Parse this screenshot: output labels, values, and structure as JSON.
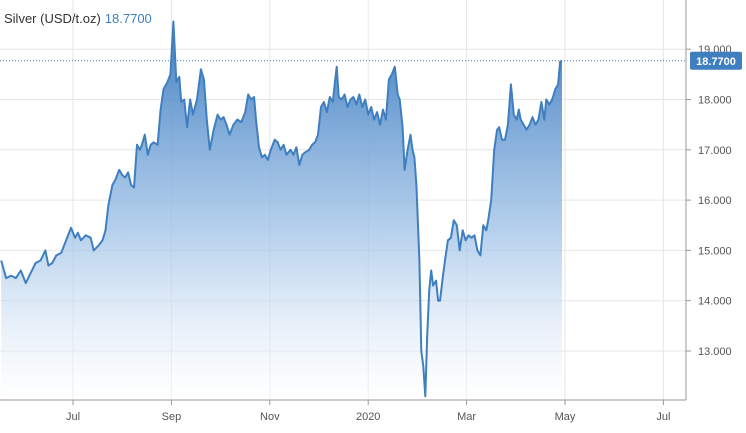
{
  "header": {
    "instrument": "Silver (USD/t.oz)",
    "last_price": "18.7700"
  },
  "colors": {
    "line": "#3f7fc0",
    "fill_top": "#3d7cc0",
    "fill_bottom": "#ffffff",
    "grid": "#e6e6e6",
    "axis": "#999999",
    "badge": "#3f7fc0",
    "title_value": "#3f7fc0"
  },
  "chart_data": {
    "type": "area",
    "title": "Silver (USD/t.oz)",
    "xlabel": "",
    "ylabel": "",
    "ylim": [
      12.0,
      19.9
    ],
    "grid": true,
    "y_axis_position": "right",
    "y_ticks": [
      13.0,
      14.0,
      15.0,
      16.0,
      17.0,
      18.0,
      19.0
    ],
    "y_tick_labels": [
      "13.000",
      "14.000",
      "15.000",
      "16.000",
      "17.000",
      "18.000",
      "19.000"
    ],
    "x_ticks": [
      {
        "label": "Jul",
        "t": 1.0
      },
      {
        "label": "Sep",
        "t": 3.0
      },
      {
        "label": "Nov",
        "t": 5.0
      },
      {
        "label": "2020",
        "t": 7.0
      },
      {
        "label": "Mar",
        "t": 9.0
      },
      {
        "label": "May",
        "t": 11.0
      },
      {
        "label": "Jul",
        "t": 13.0
      }
    ],
    "current_value": 18.77,
    "current_value_label": "18.7700",
    "series": [
      {
        "points": [
          [
            -0.46,
            14.8
          ],
          [
            -0.36,
            14.45
          ],
          [
            -0.26,
            14.5
          ],
          [
            -0.16,
            14.45
          ],
          [
            -0.06,
            14.6
          ],
          [
            0.04,
            14.35
          ],
          [
            0.14,
            14.55
          ],
          [
            0.24,
            14.75
          ],
          [
            0.34,
            14.8
          ],
          [
            0.44,
            15.0
          ],
          [
            0.5,
            14.7
          ],
          [
            0.58,
            14.75
          ],
          [
            0.66,
            14.9
          ],
          [
            0.76,
            14.95
          ],
          [
            0.86,
            15.2
          ],
          [
            0.96,
            15.45
          ],
          [
            1.04,
            15.25
          ],
          [
            1.1,
            15.35
          ],
          [
            1.16,
            15.2
          ],
          [
            1.26,
            15.3
          ],
          [
            1.36,
            15.25
          ],
          [
            1.42,
            15.0
          ],
          [
            1.52,
            15.1
          ],
          [
            1.6,
            15.2
          ],
          [
            1.66,
            15.4
          ],
          [
            1.72,
            15.9
          ],
          [
            1.8,
            16.3
          ],
          [
            1.86,
            16.4
          ],
          [
            1.94,
            16.6
          ],
          [
            2.0,
            16.5
          ],
          [
            2.06,
            16.45
          ],
          [
            2.12,
            16.55
          ],
          [
            2.18,
            16.3
          ],
          [
            2.24,
            16.25
          ],
          [
            2.3,
            17.1
          ],
          [
            2.36,
            17.0
          ],
          [
            2.4,
            17.1
          ],
          [
            2.46,
            17.3
          ],
          [
            2.52,
            16.9
          ],
          [
            2.58,
            17.1
          ],
          [
            2.64,
            17.15
          ],
          [
            2.72,
            17.1
          ],
          [
            2.78,
            17.8
          ],
          [
            2.84,
            18.2
          ],
          [
            2.92,
            18.35
          ],
          [
            2.98,
            18.5
          ],
          [
            3.04,
            19.55
          ],
          [
            3.1,
            18.35
          ],
          [
            3.16,
            18.45
          ],
          [
            3.2,
            17.95
          ],
          [
            3.26,
            18.0
          ],
          [
            3.32,
            17.45
          ],
          [
            3.38,
            18.0
          ],
          [
            3.44,
            17.7
          ],
          [
            3.52,
            18.0
          ],
          [
            3.6,
            18.6
          ],
          [
            3.66,
            18.4
          ],
          [
            3.72,
            17.6
          ],
          [
            3.78,
            17.0
          ],
          [
            3.86,
            17.4
          ],
          [
            3.94,
            17.7
          ],
          [
            4.0,
            17.6
          ],
          [
            4.06,
            17.65
          ],
          [
            4.12,
            17.5
          ],
          [
            4.18,
            17.3
          ],
          [
            4.26,
            17.5
          ],
          [
            4.34,
            17.6
          ],
          [
            4.42,
            17.55
          ],
          [
            4.5,
            17.75
          ],
          [
            4.56,
            18.1
          ],
          [
            4.62,
            18.0
          ],
          [
            4.68,
            18.05
          ],
          [
            4.72,
            17.6
          ],
          [
            4.78,
            17.05
          ],
          [
            4.84,
            16.85
          ],
          [
            4.9,
            16.9
          ],
          [
            4.96,
            16.8
          ],
          [
            5.02,
            17.0
          ],
          [
            5.1,
            17.2
          ],
          [
            5.16,
            17.15
          ],
          [
            5.22,
            17.0
          ],
          [
            5.28,
            17.1
          ],
          [
            5.34,
            16.9
          ],
          [
            5.42,
            17.0
          ],
          [
            5.48,
            16.9
          ],
          [
            5.54,
            17.05
          ],
          [
            5.6,
            16.7
          ],
          [
            5.66,
            16.9
          ],
          [
            5.72,
            16.95
          ],
          [
            5.8,
            17.0
          ],
          [
            5.86,
            17.1
          ],
          [
            5.92,
            17.15
          ],
          [
            5.98,
            17.3
          ],
          [
            6.04,
            17.85
          ],
          [
            6.1,
            17.95
          ],
          [
            6.16,
            17.75
          ],
          [
            6.22,
            18.05
          ],
          [
            6.28,
            17.95
          ],
          [
            6.32,
            18.3
          ],
          [
            6.36,
            18.65
          ],
          [
            6.4,
            18.05
          ],
          [
            6.46,
            18.0
          ],
          [
            6.52,
            18.1
          ],
          [
            6.58,
            17.85
          ],
          [
            6.64,
            18.0
          ],
          [
            6.7,
            18.05
          ],
          [
            6.76,
            17.9
          ],
          [
            6.82,
            18.1
          ],
          [
            6.88,
            17.85
          ],
          [
            6.94,
            18.0
          ],
          [
            7.0,
            17.7
          ],
          [
            7.06,
            17.85
          ],
          [
            7.12,
            17.6
          ],
          [
            7.18,
            17.75
          ],
          [
            7.24,
            17.5
          ],
          [
            7.3,
            17.8
          ],
          [
            7.36,
            17.6
          ],
          [
            7.42,
            18.4
          ],
          [
            7.48,
            18.5
          ],
          [
            7.54,
            18.65
          ],
          [
            7.6,
            18.1
          ],
          [
            7.64,
            18.0
          ],
          [
            7.7,
            17.45
          ],
          [
            7.74,
            16.6
          ],
          [
            7.8,
            17.0
          ],
          [
            7.86,
            17.3
          ],
          [
            7.9,
            17.0
          ],
          [
            7.94,
            16.85
          ],
          [
            7.98,
            16.3
          ],
          [
            8.04,
            14.8
          ],
          [
            8.08,
            13.0
          ],
          [
            8.12,
            12.7
          ],
          [
            8.16,
            12.1
          ],
          [
            8.2,
            13.3
          ],
          [
            8.24,
            14.2
          ],
          [
            8.28,
            14.6
          ],
          [
            8.32,
            14.3
          ],
          [
            8.38,
            14.4
          ],
          [
            8.42,
            14.0
          ],
          [
            8.46,
            14.0
          ],
          [
            8.52,
            14.5
          ],
          [
            8.56,
            14.8
          ],
          [
            8.62,
            15.2
          ],
          [
            8.68,
            15.25
          ],
          [
            8.74,
            15.6
          ],
          [
            8.8,
            15.5
          ],
          [
            8.86,
            15.0
          ],
          [
            8.92,
            15.4
          ],
          [
            8.98,
            15.2
          ],
          [
            9.04,
            15.3
          ],
          [
            9.1,
            15.25
          ],
          [
            9.16,
            15.3
          ],
          [
            9.22,
            15.0
          ],
          [
            9.28,
            14.9
          ],
          [
            9.34,
            15.5
          ],
          [
            9.4,
            15.4
          ],
          [
            9.44,
            15.6
          ],
          [
            9.5,
            16.0
          ],
          [
            9.56,
            17.0
          ],
          [
            9.62,
            17.4
          ],
          [
            9.66,
            17.45
          ],
          [
            9.72,
            17.2
          ],
          [
            9.78,
            17.2
          ],
          [
            9.84,
            17.5
          ],
          [
            9.9,
            18.3
          ],
          [
            9.96,
            17.7
          ],
          [
            10.02,
            17.6
          ],
          [
            10.06,
            17.8
          ],
          [
            10.1,
            17.6
          ],
          [
            10.16,
            17.5
          ],
          [
            10.22,
            17.4
          ],
          [
            10.28,
            17.5
          ],
          [
            10.34,
            17.65
          ],
          [
            10.4,
            17.5
          ],
          [
            10.46,
            17.6
          ],
          [
            10.52,
            17.95
          ],
          [
            10.58,
            17.6
          ],
          [
            10.62,
            18.0
          ],
          [
            10.68,
            17.9
          ],
          [
            10.74,
            18.0
          ],
          [
            10.8,
            18.2
          ],
          [
            10.86,
            18.3
          ],
          [
            10.9,
            18.75
          ],
          [
            10.94,
            18.77
          ]
        ]
      }
    ]
  }
}
